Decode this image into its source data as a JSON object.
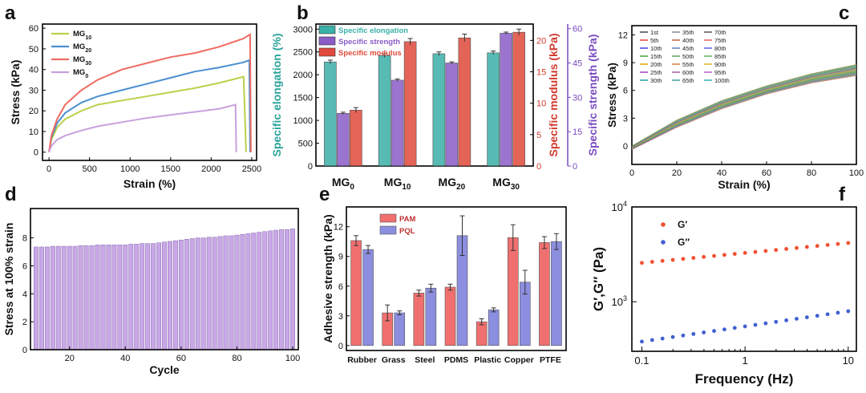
{
  "chart_data": [
    {
      "panel": "a",
      "type": "line",
      "xlabel": "Strain (%)",
      "ylabel": "Stress (kPa)",
      "xlim": [
        0,
        2500
      ],
      "ylim": [
        0,
        60
      ],
      "xticks": [
        0,
        500,
        1000,
        1500,
        2000,
        2500
      ],
      "yticks": [
        0,
        10,
        20,
        30,
        40,
        50,
        60
      ],
      "series": [
        {
          "name": "MG10",
          "color": "#b8d24a",
          "x": [
            0,
            30,
            100,
            200,
            400,
            600,
            900,
            1200,
            1500,
            1800,
            2100,
            2400,
            2430
          ],
          "y": [
            0,
            6,
            12,
            16,
            20,
            23,
            25,
            27,
            29,
            31,
            33.5,
            36.5,
            0
          ]
        },
        {
          "name": "MG20",
          "color": "#4a8fd0",
          "x": [
            0,
            30,
            100,
            200,
            400,
            600,
            900,
            1200,
            1500,
            1800,
            2100,
            2400,
            2470,
            2480
          ],
          "y": [
            0,
            7,
            14,
            19,
            24,
            27,
            30,
            33,
            36,
            39,
            41,
            43.5,
            44.5,
            0
          ]
        },
        {
          "name": "MG30",
          "color": "#f06b62",
          "x": [
            0,
            30,
            100,
            200,
            400,
            600,
            900,
            1200,
            1500,
            1800,
            2100,
            2400,
            2480,
            2490
          ],
          "y": [
            0,
            8,
            16,
            23,
            30,
            35,
            40,
            43,
            46,
            48,
            51,
            55,
            57,
            0
          ]
        },
        {
          "name": "MG0",
          "color": "#c9a0de",
          "x": [
            0,
            30,
            100,
            200,
            400,
            600,
            900,
            1200,
            1500,
            1800,
            2100,
            2300,
            2310
          ],
          "y": [
            0,
            3,
            6,
            8,
            10.5,
            12.5,
            14.5,
            16.5,
            18,
            19.5,
            21,
            23,
            0
          ]
        }
      ]
    },
    {
      "panel": "b",
      "type": "bar",
      "categories": [
        "MG0",
        "MG10",
        "MG20",
        "MG30"
      ],
      "ylabel": "Specific elongation (%)",
      "ylabel_right1": "Specific modulus (kPa)",
      "ylabel_right2": "Specific strength (kPa)",
      "ylim": [
        0,
        3000
      ],
      "yticks": [
        0,
        500,
        1000,
        1500,
        2000,
        2500,
        3000
      ],
      "ylim_right1": [
        0,
        22.5
      ],
      "yticks_right1": [
        0,
        5,
        10,
        15,
        20
      ],
      "ylim_right2": [
        0,
        60
      ],
      "yticks_right2": [
        0,
        15,
        30,
        45,
        60
      ],
      "series": [
        {
          "name": "Specific elongation",
          "axis": "left",
          "color": "#3ab0a8",
          "values": [
            2280,
            2420,
            2460,
            2480
          ],
          "errors": [
            40,
            40,
            40,
            40
          ]
        },
        {
          "name": "Specific strength",
          "axis": "right2",
          "color": "#8a5cc8",
          "values": [
            23,
            37.5,
            45,
            58
          ],
          "errors": [
            0.5,
            0.5,
            0.5,
            0.5
          ]
        },
        {
          "name": "Specific modulus",
          "axis": "right1",
          "color": "#e04a3c",
          "values": [
            8.9,
            19.8,
            20.4,
            21.3
          ],
          "errors": [
            0.4,
            0.5,
            0.6,
            0.5
          ]
        }
      ]
    },
    {
      "panel": "c",
      "type": "line",
      "xlabel": "Strain (%)",
      "ylabel": "Stress (kPa)",
      "xlim": [
        0,
        100
      ],
      "ylim": [
        -2,
        13
      ],
      "xticks": [
        0,
        20,
        40,
        60,
        80,
        100
      ],
      "yticks": [
        0,
        3,
        6,
        9,
        12
      ],
      "legend": [
        "1st",
        "5th",
        "10th",
        "15th",
        "20th",
        "25th",
        "30th",
        "35th",
        "40th",
        "45th",
        "50th",
        "55th",
        "60th",
        "65th",
        "70th",
        "75th",
        "80th",
        "85th",
        "90th",
        "95th",
        "100th"
      ],
      "series_note": "21 overlapping cyclic loading curves",
      "band_upper": {
        "x": [
          0,
          20,
          40,
          60,
          80,
          100
        ],
        "y": [
          0,
          2.8,
          4.9,
          6.5,
          7.8,
          8.8
        ]
      },
      "band_lower": {
        "x": [
          0,
          20,
          40,
          60,
          80,
          100
        ],
        "y": [
          -0.4,
          2,
          4,
          5.6,
          6.8,
          7.6
        ]
      }
    },
    {
      "panel": "d",
      "type": "bar",
      "xlabel": "Cycle",
      "ylabel": "Stress at 100% strain",
      "xlim": [
        6,
        102
      ],
      "ylim": [
        0,
        10
      ],
      "xticks": [
        20,
        40,
        60,
        80,
        100
      ],
      "yticks": [
        0,
        2,
        4,
        6,
        8
      ],
      "x": [
        8,
        10,
        12,
        14,
        16,
        18,
        20,
        22,
        24,
        26,
        28,
        30,
        32,
        34,
        36,
        38,
        40,
        42,
        44,
        46,
        48,
        50,
        52,
        54,
        56,
        58,
        60,
        62,
        64,
        66,
        68,
        70,
        72,
        74,
        76,
        78,
        80,
        82,
        84,
        86,
        88,
        90,
        92,
        94,
        96,
        98,
        100
      ],
      "values": [
        7.35,
        7.35,
        7.35,
        7.4,
        7.4,
        7.4,
        7.4,
        7.4,
        7.45,
        7.45,
        7.45,
        7.5,
        7.5,
        7.5,
        7.5,
        7.5,
        7.5,
        7.55,
        7.55,
        7.6,
        7.6,
        7.6,
        7.65,
        7.7,
        7.75,
        7.8,
        7.85,
        7.9,
        7.95,
        8.0,
        8.0,
        8.05,
        8.05,
        8.1,
        8.15,
        8.15,
        8.2,
        8.25,
        8.3,
        8.35,
        8.4,
        8.45,
        8.5,
        8.55,
        8.6,
        8.6,
        8.65
      ],
      "color": "#c8a8e6"
    },
    {
      "panel": "e",
      "type": "bar",
      "categories": [
        "Rubber",
        "Grass",
        "Steel",
        "PDMS",
        "Plastic",
        "Copper",
        "PTFE"
      ],
      "ylabel": "Adhesive strength (kPa)",
      "ylim": [
        0,
        14
      ],
      "yticks": [
        0,
        3,
        6,
        9,
        12
      ],
      "series": [
        {
          "name": "PAM",
          "color": "#f07070",
          "values": [
            10.6,
            3.3,
            5.3,
            5.9,
            2.4,
            10.9,
            10.4
          ],
          "errors": [
            0.5,
            0.8,
            0.3,
            0.3,
            0.3,
            1.3,
            0.6
          ]
        },
        {
          "name": "PQL",
          "color": "#8c8ee0",
          "values": [
            9.7,
            3.3,
            5.8,
            11.1,
            3.6,
            6.4,
            10.5
          ],
          "errors": [
            0.4,
            0.2,
            0.4,
            2.0,
            0.2,
            1.2,
            0.8
          ]
        }
      ]
    },
    {
      "panel": "f",
      "type": "scatter",
      "xlabel": "Frequency (Hz)",
      "ylabel": "G′,G′′ (Pa)",
      "xscale": "log",
      "yscale": "log",
      "xlim": [
        0.08,
        12
      ],
      "ylim": [
        300,
        10000
      ],
      "xticks": [
        0.1,
        1,
        10
      ],
      "yticks": [
        1000,
        10000
      ],
      "series": [
        {
          "name": "G′",
          "color": "#f05030",
          "log_x_start": -1,
          "log_x_end": 1,
          "n": 21,
          "log_y_start": 3.41,
          "log_y_end": 3.62
        },
        {
          "name": "G′′",
          "color": "#4060d0",
          "log_x_start": -1,
          "log_x_end": 1,
          "n": 21,
          "log_y_start": 2.58,
          "log_y_end": 2.9
        }
      ]
    }
  ]
}
